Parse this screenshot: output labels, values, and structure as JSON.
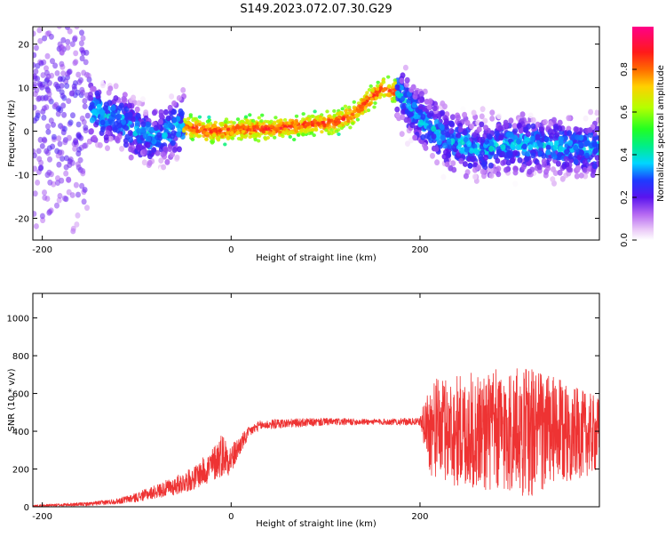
{
  "figure_title": "S149.2023.072.07.30.G29",
  "chart_data": [
    {
      "type": "heatmap",
      "xlabel": "Height of straight line (km)",
      "ylabel": "Frequency (Hz)",
      "xlim": [
        -210,
        390
      ],
      "ylim": [
        -25,
        24
      ],
      "x_ticks": [
        -200,
        0,
        200
      ],
      "y_ticks": [
        -20,
        -10,
        0,
        10,
        20
      ],
      "grid": false,
      "colorbar": {
        "label": "Normalized spectral amplitude",
        "range": [
          0,
          1
        ],
        "ticks": [
          0.0,
          0.2,
          0.4,
          0.6,
          0.8
        ]
      },
      "ridge": {
        "x": [
          -200,
          -160,
          -140,
          -120,
          -100,
          -80,
          -60,
          -45,
          -30,
          -10,
          10,
          40,
          80,
          110,
          130,
          145,
          160,
          175,
          200,
          230,
          260,
          300,
          340,
          370,
          390
        ],
        "y": [
          5,
          5,
          4,
          3,
          0,
          -2,
          1,
          1,
          0,
          0,
          0.5,
          0.5,
          1.5,
          2,
          4,
          7,
          10,
          9,
          3,
          -2,
          -4,
          -3,
          -3,
          -4,
          -4
        ]
      }
    },
    {
      "type": "line",
      "xlabel": "Height of straight line (km)",
      "ylabel": "SNR (10 * v/v)",
      "xlim": [
        -210,
        390
      ],
      "ylim": [
        0,
        1130
      ],
      "x_ticks": [
        -200,
        0,
        200
      ],
      "y_ticks": [
        0,
        200,
        400,
        600,
        800,
        1000
      ],
      "grid": false,
      "series_color": "#ee3333",
      "envelope": {
        "x": [
          -210,
          -150,
          -120,
          -100,
          -80,
          -60,
          -40,
          -20,
          -10,
          0,
          10,
          20,
          30,
          50,
          100,
          150,
          200,
          210,
          240,
          280,
          320,
          360,
          390
        ],
        "mean": [
          5,
          15,
          30,
          50,
          80,
          110,
          150,
          220,
          280,
          250,
          330,
          400,
          430,
          440,
          450,
          450,
          450,
          420,
          400,
          400,
          400,
          390,
          380
        ],
        "spread": [
          5,
          10,
          15,
          25,
          35,
          50,
          60,
          90,
          120,
          80,
          50,
          30,
          25,
          25,
          20,
          15,
          20,
          250,
          300,
          330,
          350,
          250,
          200
        ]
      }
    }
  ]
}
